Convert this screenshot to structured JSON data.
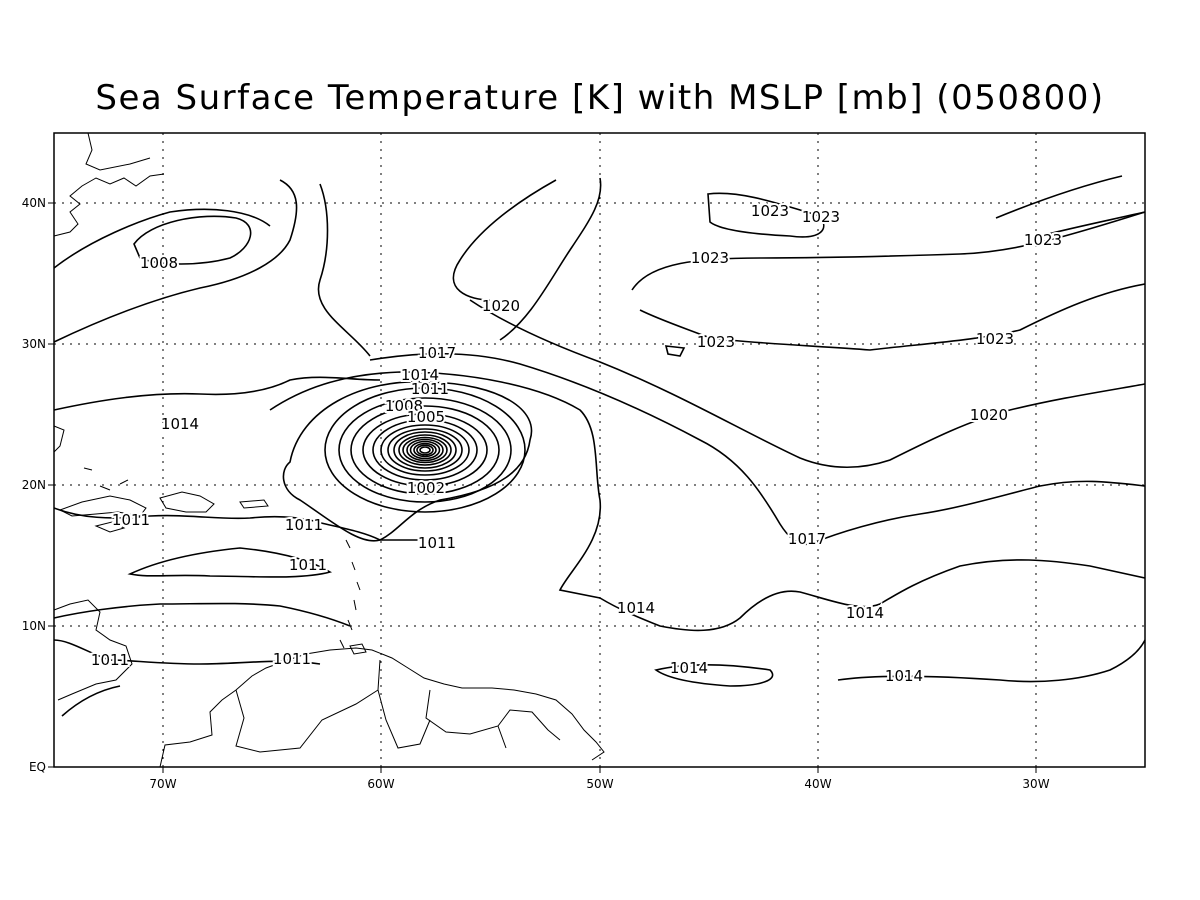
{
  "title": "Sea Surface Temperature [K] with MSLP [mb] (050800)",
  "map": {
    "projection": "lat-lon",
    "lon_range": [
      "75W",
      "25W"
    ],
    "lat_range": [
      "EQ",
      "45N"
    ],
    "grid": "dotted",
    "x_tick_labels": [
      "70W",
      "60W",
      "50W",
      "40W",
      "30W"
    ],
    "y_tick_labels": [
      "EQ",
      "10N",
      "20N",
      "30N",
      "40N"
    ],
    "low_center": {
      "lon": "58W",
      "lat": "22.5N"
    }
  },
  "contour_labels": [
    {
      "text": "1023",
      "name": "label-1023-a"
    },
    {
      "text": "1023",
      "name": "label-1023-b"
    },
    {
      "text": "1023",
      "name": "label-1023-c"
    },
    {
      "text": "1023",
      "name": "label-1023-d"
    },
    {
      "text": "1023",
      "name": "label-1023-e"
    },
    {
      "text": "1023",
      "name": "label-1023-f"
    },
    {
      "text": "1020",
      "name": "label-1020-a"
    },
    {
      "text": "1020",
      "name": "label-1020-b"
    },
    {
      "text": "1017",
      "name": "label-1017-a"
    },
    {
      "text": "1017",
      "name": "label-1017-b"
    },
    {
      "text": "1014",
      "name": "label-1014-a"
    },
    {
      "text": "1014",
      "name": "label-1014-b"
    },
    {
      "text": "1014",
      "name": "label-1014-c"
    },
    {
      "text": "1014",
      "name": "label-1014-d"
    },
    {
      "text": "1014",
      "name": "label-1014-e"
    },
    {
      "text": "1014",
      "name": "label-1014-f"
    },
    {
      "text": "1011",
      "name": "label-1011-a"
    },
    {
      "text": "1011",
      "name": "label-1011-b"
    },
    {
      "text": "1011",
      "name": "label-1011-c"
    },
    {
      "text": "1011",
      "name": "label-1011-d"
    },
    {
      "text": "1011",
      "name": "label-1011-e"
    },
    {
      "text": "1011",
      "name": "label-1011-f"
    },
    {
      "text": "1011",
      "name": "label-1011-g"
    },
    {
      "text": "1008",
      "name": "label-1008-a"
    },
    {
      "text": "1008",
      "name": "label-1008-b"
    },
    {
      "text": "1005",
      "name": "label-1005"
    },
    {
      "text": "1002",
      "name": "label-1002"
    }
  ]
}
